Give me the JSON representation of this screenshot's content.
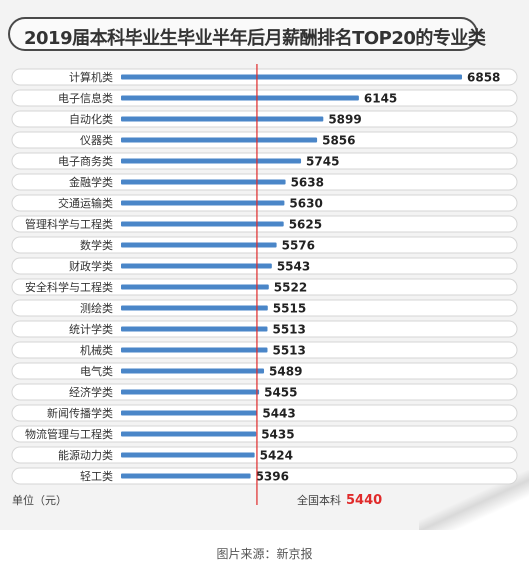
{
  "chart_data": {
    "type": "bar",
    "orientation": "horizontal",
    "title": "2019届本科毕业生毕业半年后月薪酬排名TOP20的专业类",
    "categories": [
      "计算机类",
      "电子信息类",
      "自动化类",
      "仪器类",
      "电子商务类",
      "金融学类",
      "交通运输类",
      "管理科学与工程类",
      "数学类",
      "财政学类",
      "安全科学与工程类",
      "测绘类",
      "统计学类",
      "机械类",
      "电气类",
      "经济学类",
      "新闻传播学类",
      "物流管理与工程类",
      "能源动力类",
      "轻工类"
    ],
    "values": [
      6858,
      6145,
      5899,
      5856,
      5745,
      5638,
      5630,
      5625,
      5576,
      5543,
      5522,
      5515,
      5513,
      5513,
      5489,
      5455,
      5443,
      5435,
      5424,
      5396
    ],
    "reference_line": {
      "label": "全国本科",
      "value": 5440
    },
    "unit_label": "单位（元）",
    "colors": {
      "bar": "#4a86c8",
      "reference": "#e02a2a"
    }
  },
  "source": "图片来源：新京报"
}
